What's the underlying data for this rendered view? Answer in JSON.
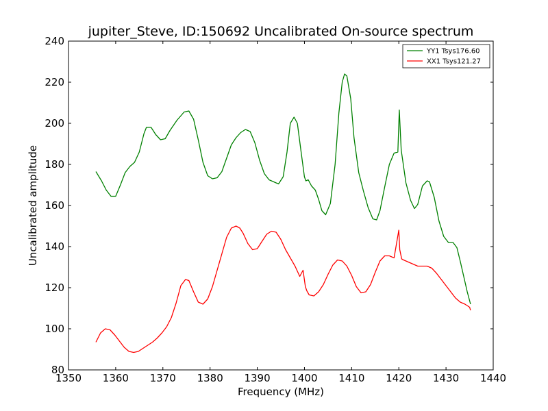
{
  "chart_data": {
    "type": "line",
    "title": "jupiter_Steve, ID:150692 Uncalibrated On-source spectrum",
    "xlabel": "Frequency (MHz)",
    "ylabel": "Uncalibrated amplitude",
    "xlim": [
      1350,
      1440
    ],
    "ylim": [
      80,
      240
    ],
    "xticks": [
      1350,
      1360,
      1370,
      1380,
      1390,
      1400,
      1410,
      1420,
      1430,
      1440
    ],
    "yticks": [
      80,
      100,
      120,
      140,
      160,
      180,
      200,
      220,
      240
    ],
    "grid": false,
    "legend_position": "top-right",
    "series": [
      {
        "name": "YY1 Tsys176.60",
        "color": "#008000",
        "x": [
          1355.8,
          1357.0,
          1358.0,
          1359.0,
          1360.0,
          1361.0,
          1362.0,
          1363.0,
          1364.0,
          1365.0,
          1366.0,
          1366.5,
          1367.5,
          1368.5,
          1369.5,
          1370.5,
          1371.5,
          1373.0,
          1374.5,
          1375.5,
          1376.5,
          1377.5,
          1378.5,
          1379.5,
          1380.5,
          1381.5,
          1382.5,
          1383.5,
          1384.5,
          1385.5,
          1386.5,
          1387.5,
          1388.5,
          1389.5,
          1390.5,
          1391.5,
          1392.5,
          1393.5,
          1394.5,
          1395.5,
          1396.3,
          1397.0,
          1397.8,
          1398.5,
          1399.3,
          1400.0,
          1400.3,
          1400.8,
          1401.5,
          1402.3,
          1403.0,
          1403.7,
          1404.5,
          1405.5,
          1406.5,
          1407.3,
          1408.0,
          1408.5,
          1409.0,
          1409.8,
          1410.5,
          1411.5,
          1412.5,
          1413.5,
          1414.5,
          1415.3,
          1416.0,
          1417.0,
          1418.0,
          1419.0,
          1419.8,
          1420.1,
          1420.5,
          1421.5,
          1422.5,
          1423.3,
          1424.0,
          1425.0,
          1426.0,
          1426.5,
          1427.5,
          1428.5,
          1429.5,
          1430.5,
          1431.5,
          1432.3,
          1433.0,
          1433.8,
          1434.5,
          1435.2
        ],
        "y": [
          176.5,
          172,
          167.5,
          164.5,
          164.5,
          170,
          176,
          179,
          181,
          186,
          195,
          198,
          198,
          194.5,
          192,
          192.5,
          196.5,
          201.5,
          205.5,
          206,
          202,
          192,
          181,
          174.5,
          173,
          173.5,
          176.5,
          183,
          189.5,
          193,
          195.5,
          197,
          196,
          190.5,
          182,
          175.5,
          172.5,
          171.5,
          170.5,
          174,
          186,
          200,
          203,
          200,
          186,
          174,
          172,
          172.5,
          169.5,
          167.5,
          163,
          157.5,
          155.5,
          161,
          180,
          205,
          220,
          224,
          223,
          212,
          193,
          176,
          167,
          159,
          153.5,
          153,
          157.5,
          169,
          180,
          185.5,
          186,
          206.5,
          187,
          171,
          162.5,
          158.5,
          160.5,
          169.5,
          172,
          171.5,
          164,
          152.5,
          145,
          142,
          142,
          139.5,
          133,
          125,
          118,
          112
        ]
      },
      {
        "name": "XX1 Tsys121.27",
        "color": "#ff0000",
        "x": [
          1355.8,
          1356.8,
          1357.8,
          1358.8,
          1359.8,
          1360.8,
          1361.8,
          1362.8,
          1363.8,
          1364.8,
          1365.8,
          1366.8,
          1367.8,
          1368.8,
          1369.8,
          1370.8,
          1371.8,
          1372.8,
          1373.8,
          1374.8,
          1375.5,
          1376.5,
          1377.5,
          1378.5,
          1379.5,
          1380.5,
          1381.5,
          1382.5,
          1383.5,
          1384.5,
          1385.5,
          1386.3,
          1387.0,
          1388.0,
          1389.0,
          1390.0,
          1391.0,
          1392.0,
          1393.0,
          1394.0,
          1395.0,
          1396.0,
          1397.0,
          1398.0,
          1399.0,
          1399.7,
          1400.2,
          1400.5,
          1401.0,
          1402.0,
          1403.0,
          1404.0,
          1405.0,
          1406.0,
          1407.0,
          1408.0,
          1409.0,
          1410.0,
          1411.0,
          1412.0,
          1413.0,
          1414.0,
          1415.0,
          1416.0,
          1417.0,
          1418.0,
          1419.0,
          1420.0,
          1420.2,
          1420.6,
          1421.0,
          1422.0,
          1423.0,
          1424.0,
          1425.0,
          1426.0,
          1427.0,
          1428.0,
          1429.0,
          1430.0,
          1431.0,
          1432.0,
          1433.0,
          1434.0,
          1435.0,
          1435.2
        ],
        "y": [
          93.5,
          98,
          100,
          99.5,
          97,
          94,
          91,
          89,
          88.5,
          89,
          90.5,
          92,
          93.5,
          95.5,
          98,
          101,
          105.5,
          112.5,
          121,
          124,
          123.5,
          118,
          113,
          112,
          114.5,
          120.5,
          128.5,
          136.5,
          144.5,
          149,
          150,
          149,
          146.5,
          141.5,
          138.5,
          139,
          142.5,
          146,
          147.5,
          147,
          143.5,
          138.5,
          134.5,
          130.5,
          125.5,
          128.5,
          120.5,
          118.5,
          116.5,
          116,
          118,
          121.5,
          126.5,
          131,
          133.5,
          133,
          130.5,
          126,
          120.5,
          117.5,
          118,
          121.5,
          127.5,
          133,
          135.5,
          135.5,
          134.5,
          148,
          138.5,
          134,
          133.5,
          132.5,
          131.5,
          130.5,
          130.5,
          130.5,
          129.5,
          127,
          124,
          121,
          118,
          115,
          113,
          112,
          110.5,
          109
        ]
      }
    ]
  }
}
